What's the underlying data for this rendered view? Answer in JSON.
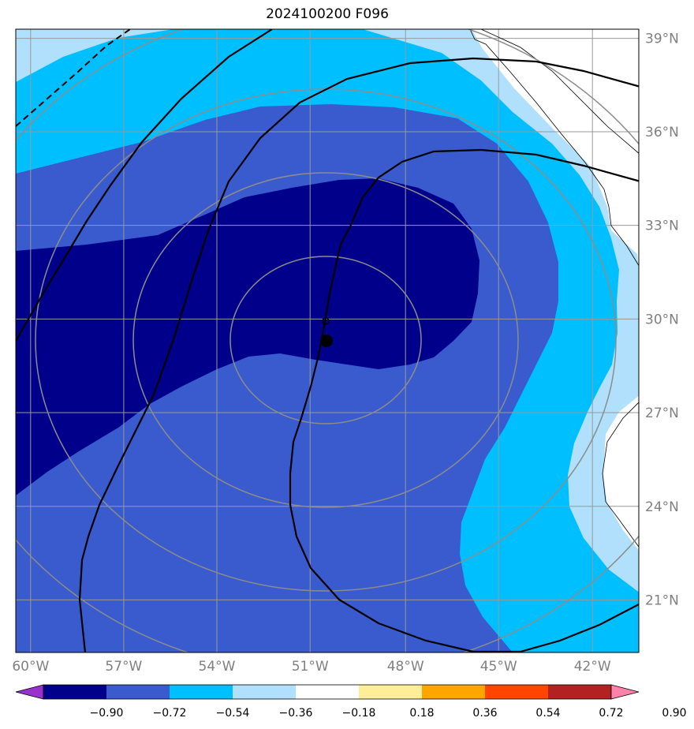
{
  "title": "2024100200 F096",
  "map": {
    "lon_range": [
      -61,
      -40
    ],
    "lat_range": [
      18.5,
      38.5
    ],
    "lon_ticks": [
      {
        "label": "60°W"
      },
      {
        "label": "57°W"
      },
      {
        "label": "54°W"
      },
      {
        "label": "51°W"
      },
      {
        "label": "48°W"
      },
      {
        "label": "45°W"
      },
      {
        "label": "42°W"
      }
    ],
    "lat_ticks": [
      {
        "label": "39°N"
      },
      {
        "label": "36°N"
      },
      {
        "label": "33°N"
      },
      {
        "label": "30°N"
      },
      {
        "label": "27°N"
      },
      {
        "label": "24°N"
      },
      {
        "label": "21°N"
      }
    ],
    "fill_colors": {
      "lt_-0.72": "#00008b",
      "-0.72_-0.54": "#3a5bcd",
      "-0.54_-0.36": "#00bfff",
      "-0.36_-0.18": "#b0e0fb",
      "neutral": "#ffffff"
    },
    "grid_color": "#999999",
    "range_ring_color": "#8c8c8c",
    "contour_color": "#000000",
    "center_marker": "filled-circle",
    "grid": true
  },
  "colorbar": {
    "colors": [
      "#9932cc",
      "#00008b",
      "#3a5bcd",
      "#00bfff",
      "#b0e0fb",
      "#ffffff",
      "#ffee99",
      "#ffa500",
      "#ff4500",
      "#b22222",
      "#ff82ab"
    ],
    "labels": [
      "−0.90",
      "−0.72",
      "−0.54",
      "−0.36",
      "−0.18",
      "0.18",
      "0.36",
      "0.54",
      "0.72",
      "0.90"
    ],
    "extend": "both"
  }
}
